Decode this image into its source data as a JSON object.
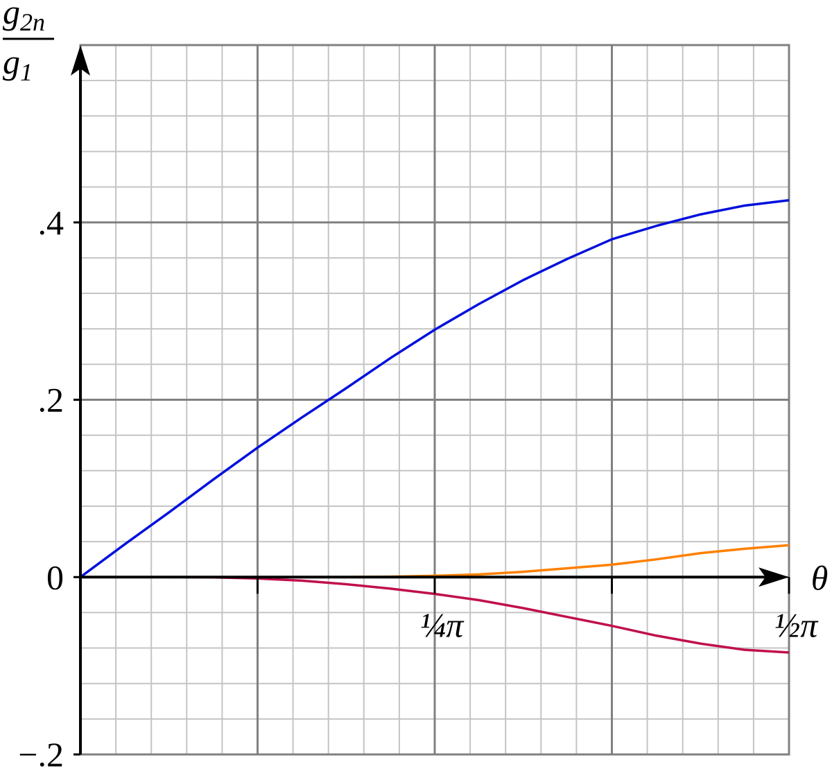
{
  "chart_data": {
    "type": "line",
    "ylabel": {
      "numerator": {
        "base": "g",
        "sub": "2n"
      },
      "denominator": {
        "base": "g",
        "sub": "1"
      }
    },
    "xlabel": "θ",
    "x": [
      0,
      0.0982,
      0.1963,
      0.2945,
      0.3927,
      0.4909,
      0.589,
      0.6872,
      0.7854,
      0.8836,
      0.9817,
      1.0799,
      1.1781,
      1.2763,
      1.3744,
      1.4726,
      1.5708
    ],
    "series": [
      {
        "color": "#0010dd",
        "values": [
          0,
          0.037,
          0.073,
          0.11,
          0.146,
          0.18,
          0.213,
          0.247,
          0.279,
          0.308,
          0.335,
          0.359,
          0.381,
          0.396,
          0.409,
          0.419,
          0.425
        ]
      },
      {
        "color": "#ff8000",
        "values": [
          0,
          0,
          0,
          0,
          0,
          0,
          0,
          0.0005,
          0.0015,
          0.003,
          0.006,
          0.01,
          0.014,
          0.02,
          0.027,
          0.032,
          0.036
        ]
      },
      {
        "color": "#c0104a",
        "values": [
          0,
          0,
          0,
          -0.0003,
          -0.0016,
          -0.004,
          -0.008,
          -0.013,
          -0.019,
          -0.026,
          -0.035,
          -0.045,
          -0.055,
          -0.066,
          -0.075,
          -0.082,
          -0.085
        ]
      }
    ],
    "xlim": [
      0,
      1.5708
    ],
    "xticks": [
      {
        "value": 0.7854,
        "label": "¼π"
      },
      {
        "value": 1.5708,
        "label": "½π"
      }
    ],
    "ylim": [
      -0.2,
      0.6
    ],
    "yticks": [
      {
        "value": -0.2,
        "label": "−.2"
      },
      0,
      {
        "value": 0.2,
        "label": ".2"
      },
      {
        "value": 0.4,
        "label": ".4"
      }
    ],
    "grid": true
  }
}
